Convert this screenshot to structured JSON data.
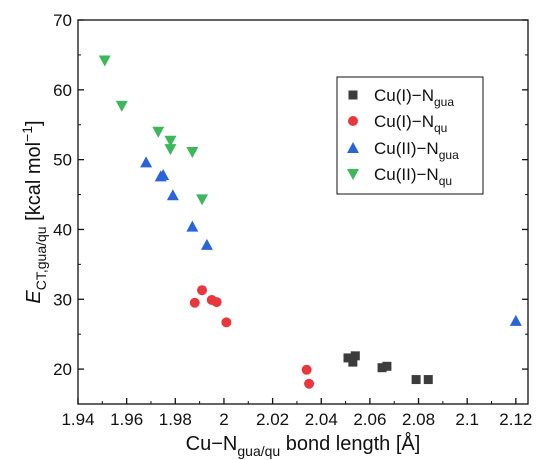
{
  "chart_data": {
    "type": "scatter",
    "xlabel": {
      "main": "Cu−N",
      "sub": "gua/qu",
      "tail": " bond length [Å]"
    },
    "ylabel": {
      "main": "E",
      "sub": "CT,gua/qu",
      "tail": " [kcal mol",
      "sup": "−1",
      "end": "]"
    },
    "xlim": [
      1.94,
      2.125
    ],
    "ylim": [
      15,
      70
    ],
    "xticks": [
      1.94,
      1.96,
      1.98,
      2.0,
      2.02,
      2.04,
      2.06,
      2.08,
      2.1,
      2.12
    ],
    "xtick_labels": [
      "1.94",
      "1.96",
      "1.98",
      "2",
      "2.02",
      "2.04",
      "2.06",
      "2.08",
      "2.1",
      "2.12"
    ],
    "yticks": [
      20,
      30,
      40,
      50,
      60,
      70
    ],
    "ytick_labels": [
      "20",
      "30",
      "40",
      "50",
      "60",
      "70"
    ],
    "grid": false,
    "legend_position": "top-right",
    "series": [
      {
        "name": {
          "main": "Cu(I)−N",
          "sub": "gua"
        },
        "marker": "square",
        "color": "#3c3c3c",
        "points": [
          [
            2.051,
            21.6
          ],
          [
            2.054,
            21.9
          ],
          [
            2.053,
            21.0
          ],
          [
            2.065,
            20.2
          ],
          [
            2.067,
            20.4
          ],
          [
            2.079,
            18.5
          ],
          [
            2.084,
            18.5
          ]
        ]
      },
      {
        "name": {
          "main": "Cu(I)−N",
          "sub": "qu"
        },
        "marker": "circle",
        "color": "#e8383d",
        "points": [
          [
            1.988,
            29.5
          ],
          [
            1.991,
            31.3
          ],
          [
            1.995,
            29.9
          ],
          [
            1.997,
            29.6
          ],
          [
            2.001,
            26.7
          ],
          [
            2.034,
            19.9
          ],
          [
            2.035,
            17.9
          ]
        ]
      },
      {
        "name": {
          "main": "Cu(II)−N",
          "sub": "gua"
        },
        "marker": "triangle-up",
        "color": "#2a64d9",
        "points": [
          [
            1.968,
            49.6
          ],
          [
            1.974,
            47.6
          ],
          [
            1.975,
            47.8
          ],
          [
            1.979,
            44.9
          ],
          [
            1.987,
            40.4
          ],
          [
            1.993,
            37.8
          ],
          [
            2.12,
            26.9
          ]
        ]
      },
      {
        "name": {
          "main": "Cu(II)−N",
          "sub": "qu"
        },
        "marker": "triangle-down",
        "color": "#3ab85a",
        "points": [
          [
            1.951,
            64.2
          ],
          [
            1.958,
            57.7
          ],
          [
            1.973,
            54.0
          ],
          [
            1.978,
            52.7
          ],
          [
            1.978,
            51.5
          ],
          [
            1.987,
            51.1
          ],
          [
            1.991,
            44.3
          ]
        ]
      }
    ]
  }
}
